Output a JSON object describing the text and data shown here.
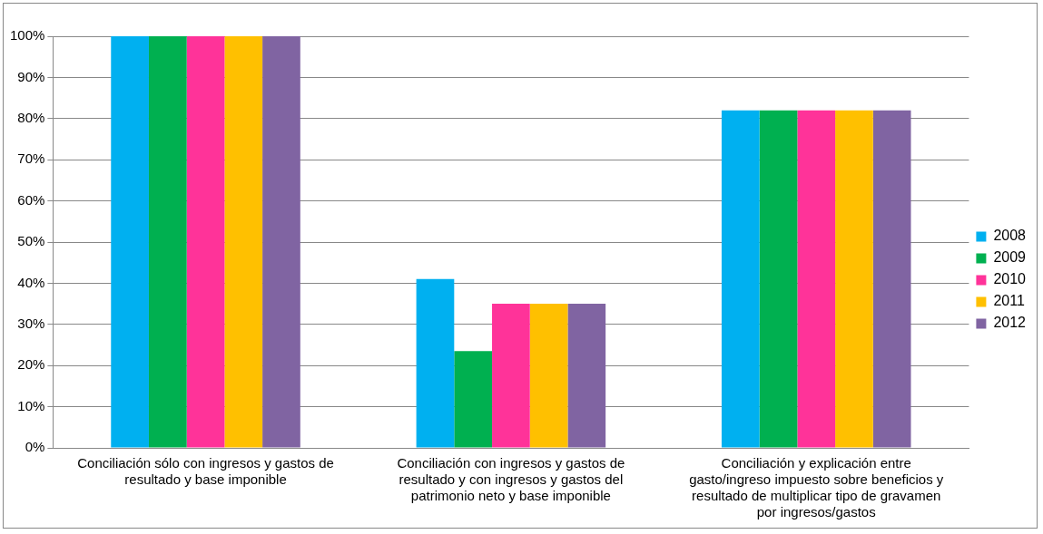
{
  "chart_data": {
    "type": "bar",
    "categories": [
      "Conciliación sólo con ingresos y gastos de resultado y base imponible",
      "Conciliación con ingresos y gastos de resultado y con ingresos y gastos del patrimonio neto y base imponible",
      "Conciliación y explicación entre gasto/ingreso impuesto sobre beneficios y resultado de multiplicar tipo de gravamen por ingresos/gastos"
    ],
    "series": [
      {
        "name": "2008",
        "color": "#00b0f0",
        "values": [
          100,
          41,
          82
        ]
      },
      {
        "name": "2009",
        "color": "#00b050",
        "values": [
          100,
          23.5,
          82
        ]
      },
      {
        "name": "2010",
        "color": "#ff3399",
        "values": [
          100,
          35,
          82
        ]
      },
      {
        "name": "2011",
        "color": "#ffc000",
        "values": [
          100,
          35,
          82
        ]
      },
      {
        "name": "2012",
        "color": "#8064a2",
        "values": [
          100,
          35,
          82
        ]
      }
    ],
    "ylim": [
      0,
      100
    ],
    "yticks": [
      {
        "value": 0,
        "label": "0%"
      },
      {
        "value": 10,
        "label": "10%"
      },
      {
        "value": 20,
        "label": "20%"
      },
      {
        "value": 30,
        "label": "30%"
      },
      {
        "value": 40,
        "label": "40%"
      },
      {
        "value": 50,
        "label": "50%"
      },
      {
        "value": 60,
        "label": "60%"
      },
      {
        "value": 70,
        "label": "70%"
      },
      {
        "value": 80,
        "label": "80%"
      },
      {
        "value": 90,
        "label": "90%"
      },
      {
        "value": 100,
        "label": "100%"
      }
    ],
    "grid": "y",
    "legend": "right"
  }
}
